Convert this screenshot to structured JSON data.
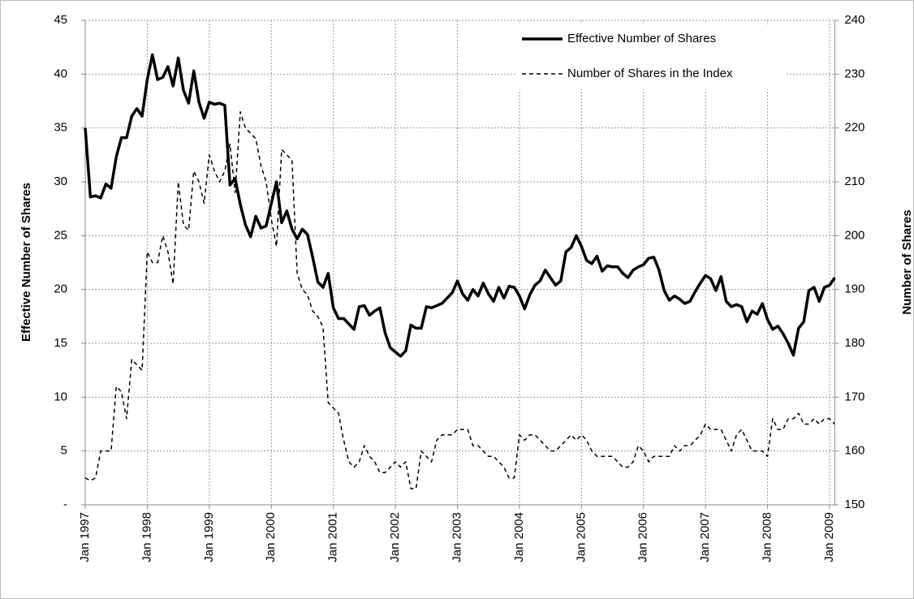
{
  "chart_data": {
    "type": "line",
    "categories": [
      "Jan 1997",
      null,
      null,
      null,
      null,
      null,
      null,
      null,
      null,
      null,
      null,
      null,
      "Jan 1998",
      null,
      null,
      null,
      null,
      null,
      null,
      null,
      null,
      null,
      null,
      null,
      "Jan 1999",
      null,
      null,
      null,
      null,
      null,
      null,
      null,
      null,
      null,
      null,
      null,
      "Jan 2000",
      null,
      null,
      null,
      null,
      null,
      null,
      null,
      null,
      null,
      null,
      null,
      "Jan 2001",
      null,
      null,
      null,
      null,
      null,
      null,
      null,
      null,
      null,
      null,
      null,
      "Jan 2002",
      null,
      null,
      null,
      null,
      null,
      null,
      null,
      null,
      null,
      null,
      null,
      "Jan 2003",
      null,
      null,
      null,
      null,
      null,
      null,
      null,
      null,
      null,
      null,
      null,
      "Jan 2004",
      null,
      null,
      null,
      null,
      null,
      null,
      null,
      null,
      null,
      null,
      null,
      "Jan 2005",
      null,
      null,
      null,
      null,
      null,
      null,
      null,
      null,
      null,
      null,
      null,
      "Jan 2006",
      null,
      null,
      null,
      null,
      null,
      null,
      null,
      null,
      null,
      null,
      null,
      "Jan 2007",
      null,
      null,
      null,
      null,
      null,
      null,
      null,
      null,
      null,
      null,
      null,
      "Jan 2008",
      null,
      null,
      null,
      null,
      null,
      null,
      null,
      null,
      null,
      null,
      null,
      "Jan 2009",
      null
    ],
    "series": [
      {
        "name": "Effective Number of Shares",
        "color": "#000000",
        "line_style": "solid",
        "axis": "y",
        "values": [
          35,
          28.6,
          28.7,
          28.5,
          29.8,
          29.4,
          32.3,
          34.1,
          34.1,
          36.1,
          36.8,
          36.1,
          39.5,
          41.8,
          39.5,
          39.7,
          40.7,
          38.9,
          41.5,
          38.5,
          37.3,
          40.3,
          37.4,
          35.9,
          37.4,
          37.2,
          37.3,
          37.1,
          29.7,
          30.3,
          27.9,
          26.0,
          24.9,
          26.8,
          25.7,
          25.9,
          28.0,
          30.0,
          26.2,
          27.3,
          25.6,
          24.7,
          25.6,
          25.1,
          23.0,
          20.7,
          20.2,
          21.5,
          18.3,
          17.3,
          17.3,
          16.8,
          16.3,
          18.4,
          18.5,
          17.6,
          18.0,
          18.3,
          16.0,
          14.6,
          14.2,
          13.8,
          14.3,
          16.7,
          16.4,
          16.4,
          18.4,
          18.3,
          18.5,
          18.7,
          19.2,
          19.7,
          20.8,
          19.6,
          19.0,
          20.0,
          19.4,
          20.6,
          19.6,
          18.9,
          20.2,
          19.2,
          20.3,
          20.2,
          19.4,
          18.2,
          19.5,
          20.4,
          20.8,
          21.8,
          21.1,
          20.4,
          20.8,
          23.5,
          23.9,
          25.0,
          24.0,
          22.7,
          22.4,
          23.1,
          21.7,
          22.2,
          22.1,
          22.1,
          21.5,
          21.1,
          21.8,
          22.1,
          22.3,
          22.9,
          23.0,
          21.8,
          19.9,
          19.0,
          19.4,
          19.1,
          18.7,
          18.9,
          19.8,
          20.6,
          21.3,
          21.0,
          19.9,
          21.2,
          18.9,
          18.4,
          18.6,
          18.4,
          17.0,
          18.0,
          17.7,
          18.7,
          17.2,
          16.3,
          16.6,
          15.9,
          15.0,
          13.9,
          16.4,
          17.0,
          19.9,
          20.2,
          18.9,
          20.2,
          20.4,
          21.1
        ]
      },
      {
        "name": "Number of Shares in the Index",
        "color": "#000000",
        "line_style": "dashed",
        "axis": "y2",
        "values": [
          155,
          154.5,
          155,
          160,
          160,
          160,
          172,
          171,
          166,
          177,
          176,
          175,
          197,
          195,
          195,
          200,
          197,
          191,
          210,
          202,
          201,
          212,
          210,
          206,
          215,
          212,
          210,
          212,
          217,
          208,
          223,
          220,
          219,
          218,
          213,
          210,
          203,
          198,
          216,
          215,
          214,
          193,
          190,
          189,
          186,
          185,
          183,
          169,
          168,
          167,
          162,
          158,
          157,
          158,
          161,
          159,
          158,
          156,
          156,
          157,
          158,
          157,
          158,
          153,
          153,
          160,
          159,
          158,
          162,
          163,
          163,
          163,
          164,
          164,
          164,
          161,
          161,
          160,
          159,
          159,
          158,
          157,
          155,
          155,
          163,
          162,
          163,
          163,
          162,
          161,
          160,
          160,
          161,
          162,
          163,
          162,
          163,
          162,
          160,
          159,
          159,
          159,
          159,
          158,
          157,
          157,
          158,
          161,
          160,
          158,
          159,
          159,
          159,
          159,
          161,
          160,
          161,
          161,
          162,
          163,
          165,
          164,
          164,
          164,
          162,
          160,
          163,
          164,
          162,
          160,
          160,
          160,
          159,
          166,
          164,
          164,
          166,
          166,
          167,
          165,
          165,
          166,
          165,
          166,
          166,
          165
        ]
      }
    ],
    "y_label": "Effective Number of Shares",
    "y2_label": "Number of Shares",
    "ylim": [
      0,
      45
    ],
    "yticks": [
      {
        "value": 0,
        "label": "-"
      },
      5,
      10,
      15,
      20,
      25,
      30,
      35,
      40,
      45
    ],
    "y2lim": [
      150,
      240
    ],
    "y2ticks": [
      150,
      160,
      170,
      180,
      190,
      200,
      210,
      220,
      230,
      240
    ],
    "grid": true,
    "legend": "upper right"
  }
}
